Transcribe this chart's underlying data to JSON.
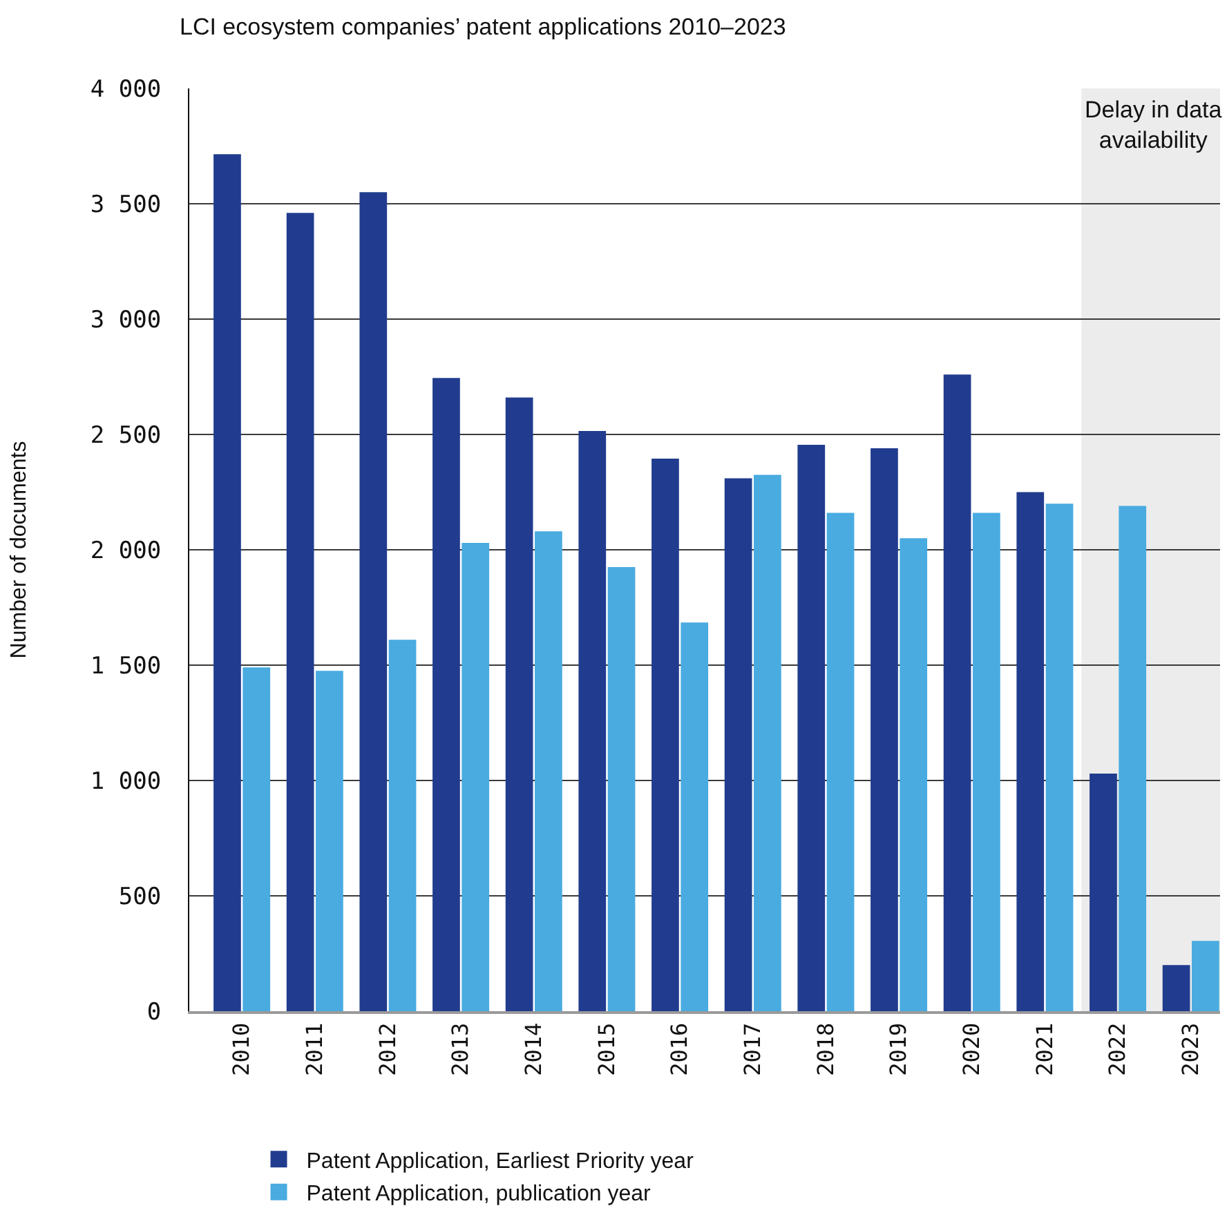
{
  "chart_data": {
    "type": "bar",
    "title": "LCI ecosystem companies’ patent applications 2010–2023",
    "ylabel": "Number of documents",
    "categories": [
      "2010",
      "2011",
      "2012",
      "2013",
      "2014",
      "2015",
      "2016",
      "2017",
      "2018",
      "2019",
      "2020",
      "2021",
      "2022",
      "2023"
    ],
    "series": [
      {
        "name": "Patent Application, Earliest Priority year",
        "color": "#213c8e",
        "values": [
          3715,
          3460,
          3550,
          2745,
          2660,
          2515,
          2395,
          2310,
          2455,
          2440,
          2760,
          2250,
          1030,
          200
        ]
      },
      {
        "name": "Patent Application, publication year",
        "color": "#49abe0",
        "values": [
          1490,
          1475,
          1610,
          2030,
          2080,
          1925,
          1685,
          2325,
          2160,
          2050,
          2160,
          2200,
          2190,
          305
        ]
      }
    ],
    "ylim": [
      0,
      4000
    ],
    "yticks": [
      0,
      500,
      {
        "value": 1000,
        "label": "1 000"
      },
      {
        "value": 1500,
        "label": "1 500"
      },
      {
        "value": 2000,
        "label": "2 000"
      },
      {
        "value": 2500,
        "label": "2 500"
      },
      {
        "value": 3000,
        "label": "3 000"
      },
      {
        "value": 3500,
        "label": "3 500"
      },
      {
        "value": 4000,
        "label": "4 000"
      }
    ],
    "grid": "y",
    "legend": "bottom left",
    "bands": [
      {
        "axis": "x",
        "from": "2022",
        "to": "2023",
        "label": "Delay in data\navailability",
        "color": "#ececec"
      }
    ]
  }
}
